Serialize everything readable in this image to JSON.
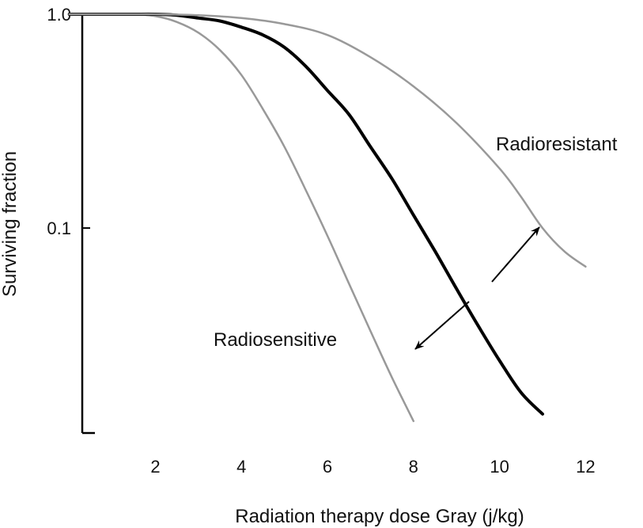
{
  "chart_data": {
    "type": "line",
    "title": "",
    "xlabel": "Radiation therapy dose Gray (j/kg)",
    "ylabel": "Surviving fraction",
    "x_ticks": [
      2,
      4,
      6,
      8,
      10,
      12
    ],
    "y_ticks": [
      {
        "value": 1.0,
        "label": "1.0"
      },
      {
        "value": 0.1,
        "label": "0.1"
      }
    ],
    "xlim": [
      0.3,
      12.6
    ],
    "ylim": [
      0.011,
      1.0
    ],
    "y_scale": "log",
    "grid": false,
    "series": [
      {
        "name": "Radiosensitive",
        "color": "#999999",
        "x": [
          0,
          1,
          1.5,
          2,
          2.5,
          3,
          3.5,
          4,
          4.5,
          5,
          5.5,
          6,
          6.5,
          7,
          7.5,
          8
        ],
        "y": [
          1.0,
          1.0,
          1.0,
          0.98,
          0.92,
          0.82,
          0.68,
          0.52,
          0.36,
          0.24,
          0.15,
          0.092,
          0.055,
          0.033,
          0.02,
          0.0125
        ]
      },
      {
        "name": "",
        "color": "#000000",
        "x": [
          0,
          1,
          1.5,
          2,
          2.5,
          3,
          3.5,
          4,
          4.5,
          5,
          5.5,
          6,
          6.5,
          7,
          7.5,
          8,
          8.5,
          9,
          9.5,
          10,
          10.5,
          11
        ],
        "y": [
          1.0,
          1.0,
          1.0,
          1.0,
          0.99,
          0.96,
          0.93,
          0.87,
          0.8,
          0.7,
          0.57,
          0.44,
          0.34,
          0.24,
          0.17,
          0.115,
          0.078,
          0.052,
          0.035,
          0.024,
          0.017,
          0.0135
        ]
      },
      {
        "name": "Radioresistant",
        "color": "#999999",
        "x": [
          0,
          1,
          1.5,
          2,
          3,
          4,
          5,
          6,
          7,
          8,
          9,
          10,
          10.5,
          11,
          11.5,
          12
        ],
        "y": [
          1.0,
          1.0,
          1.0,
          1.0,
          0.99,
          0.96,
          0.9,
          0.8,
          0.63,
          0.46,
          0.31,
          0.19,
          0.14,
          0.1,
          0.078,
          0.066
        ]
      }
    ],
    "annotations": [
      {
        "text": "Radioresistant",
        "x": 9.5,
        "y": 0.32
      },
      {
        "text": "Radiosensitive",
        "x": 7.1,
        "y": 0.028
      }
    ]
  }
}
